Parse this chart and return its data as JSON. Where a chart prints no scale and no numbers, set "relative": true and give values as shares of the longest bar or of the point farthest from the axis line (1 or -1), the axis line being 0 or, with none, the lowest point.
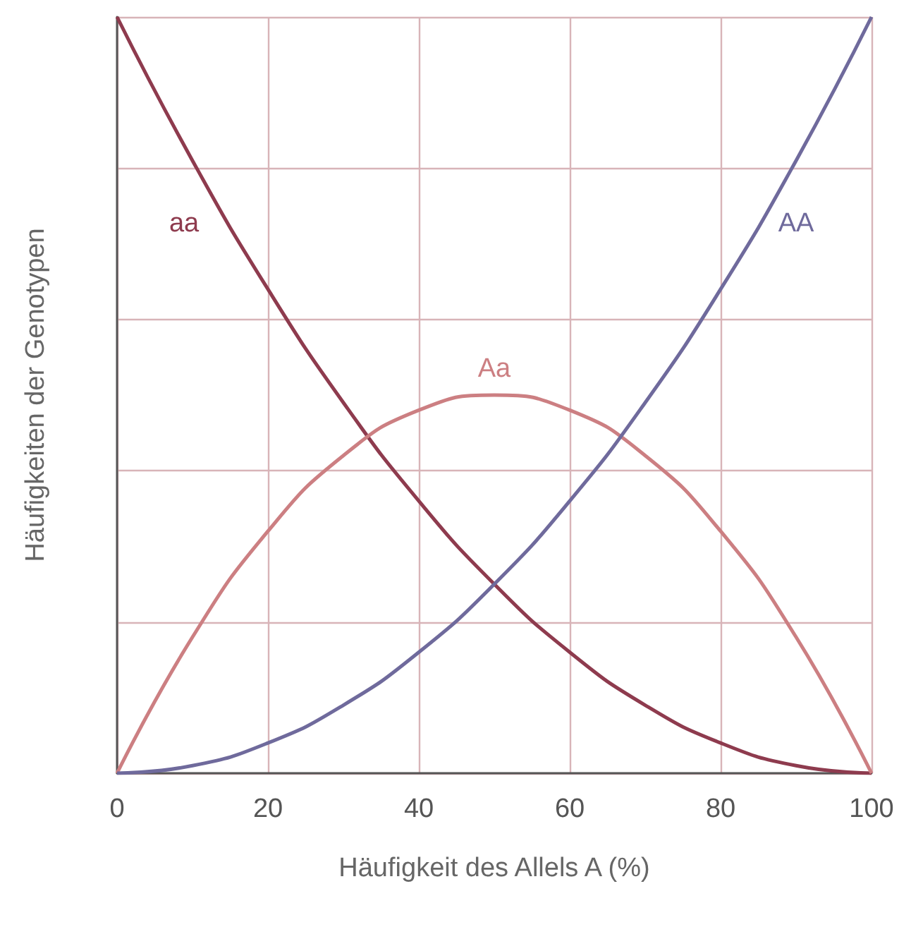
{
  "chart_data": {
    "type": "line",
    "relative": true,
    "xlabel": "Häufigkeit des Allels A (%)",
    "ylabel": "Häufigkeiten der Genotypen",
    "x": [
      0,
      10,
      20,
      30,
      40,
      50,
      60,
      70,
      80,
      90,
      100
    ],
    "xlim": [
      0,
      100
    ],
    "xticks": [
      0,
      20,
      40,
      60,
      80,
      100
    ],
    "grid": true,
    "legend": false,
    "marker": "none",
    "line_style": "solid",
    "series": [
      {
        "name": "aa",
        "color": "#8e3b4e",
        "values": [
          1,
          0.81,
          0.64,
          0.49,
          0.36,
          0.25,
          0.16,
          0.09,
          0.04,
          0.01,
          0
        ]
      },
      {
        "name": "Aa",
        "color": "#cc7f82",
        "values": [
          0,
          0.18,
          0.32,
          0.42,
          0.48,
          0.5,
          0.48,
          0.42,
          0.32,
          0.18,
          0
        ]
      },
      {
        "name": "AA",
        "color": "#6f6a9c",
        "values": [
          0,
          0.01,
          0.04,
          0.09,
          0.16,
          0.25,
          0.36,
          0.49,
          0.64,
          0.81,
          1
        ]
      }
    ]
  }
}
